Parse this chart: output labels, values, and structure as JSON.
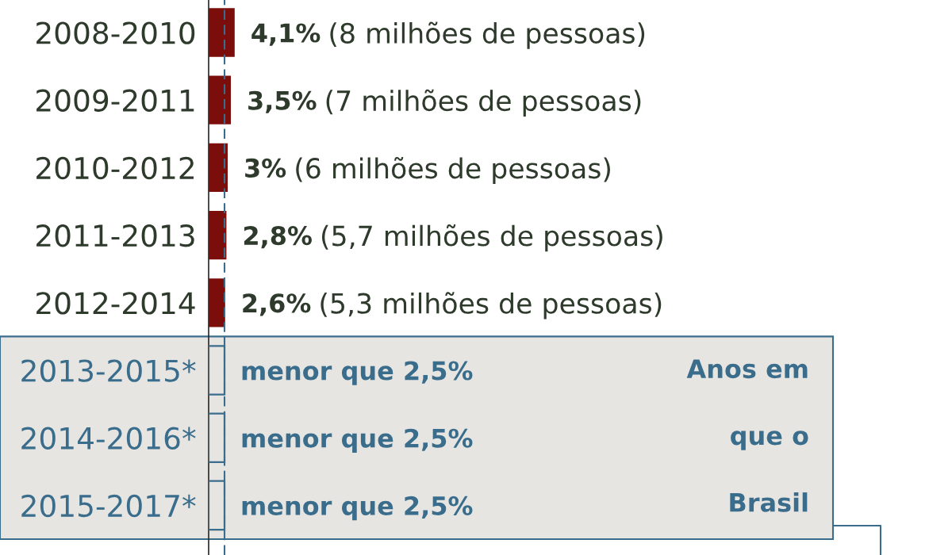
{
  "chart_data": {
    "type": "bar",
    "orientation": "horizontal",
    "categories": [
      "2008-2010",
      "2009-2011",
      "2010-2012",
      "2011-2013",
      "2012-2014",
      "2013-2015*",
      "2014-2016*",
      "2015-2017*"
    ],
    "series": [
      {
        "color": "#7b0e0b",
        "values": [
          4.1,
          3.5,
          3,
          2.8,
          2.6,
          null,
          null,
          null
        ],
        "value_labels": [
          "4,1%",
          "3,5%",
          "3%",
          "2,8%",
          "2,6%",
          null,
          null,
          null
        ]
      },
      {
        "color": "#3a6d8c",
        "line_style": "solid",
        "values": [
          null,
          null,
          null,
          null,
          null,
          2.5,
          2.5,
          2.5
        ],
        "value_labels": [
          null,
          null,
          null,
          null,
          null,
          "menor que 2,5%",
          "menor que 2,5%",
          "menor que 2,5%"
        ]
      }
    ],
    "tick_labels": "y",
    "ref_lines": [
      {
        "axis": "x",
        "value": 2.5,
        "color": "#3a6d8c",
        "line_style": "dashed"
      }
    ],
    "bands": [
      {
        "axis": "y",
        "from": "2013-2015*",
        "to": "2015-2017*",
        "label": "Anos em\nque o\nBrasil",
        "color": "#e6e5e2"
      }
    ],
    "annotations": [
      "(8 milhões de pessoas)",
      "(7 milhões de pessoas)",
      "(6 milhões de pessoas)",
      "(5,7 milhões de pessoas)",
      "(5,3 milhões de pessoas)"
    ]
  }
}
